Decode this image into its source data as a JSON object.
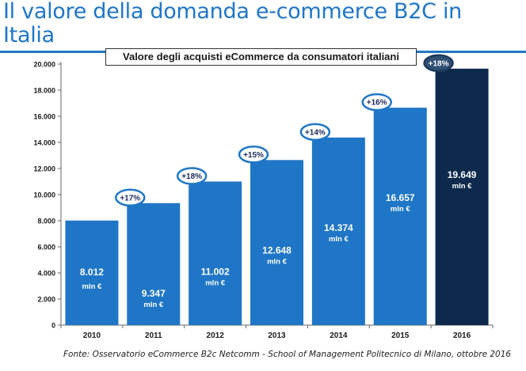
{
  "title": "Il valore della domanda e-commerce B2C in Italia",
  "source": "Fonte: Osservatorio eCommerce B2c Netcomm - School of Management Politecnico di Milano, ottobre 2016",
  "colors": {
    "title": "#1f76c6",
    "bar": "#1f76c6",
    "bar_highlight": "#0d2a4d",
    "badge_border": "#1f76c6",
    "badge_highlight_fill": "#2f4f73"
  },
  "chart_data": {
    "type": "bar",
    "title": "Valore degli acquisti eCommerce  da consumatori italiani",
    "categories": [
      "2010",
      "2011",
      "2012",
      "2013",
      "2014",
      "2015",
      "2016"
    ],
    "values": [
      8012,
      9347,
      11002,
      12648,
      14374,
      16657,
      19649
    ],
    "value_labels": [
      "8.012",
      "9.347",
      "11.002",
      "12.648",
      "14.374",
      "16.657",
      "19.649"
    ],
    "unit_label": "mln €",
    "growth_labels": [
      "+17%",
      "+18%",
      "+15%",
      "+14%",
      "+16%",
      "+18%"
    ],
    "yticks": [
      "0",
      "2.000",
      "4.000",
      "6.000",
      "8.000",
      "10.000",
      "12.000",
      "14.000",
      "16.000",
      "18.000",
      "20.000"
    ],
    "ylim": [
      0,
      20000
    ],
    "grid": false,
    "highlight_last": true
  }
}
